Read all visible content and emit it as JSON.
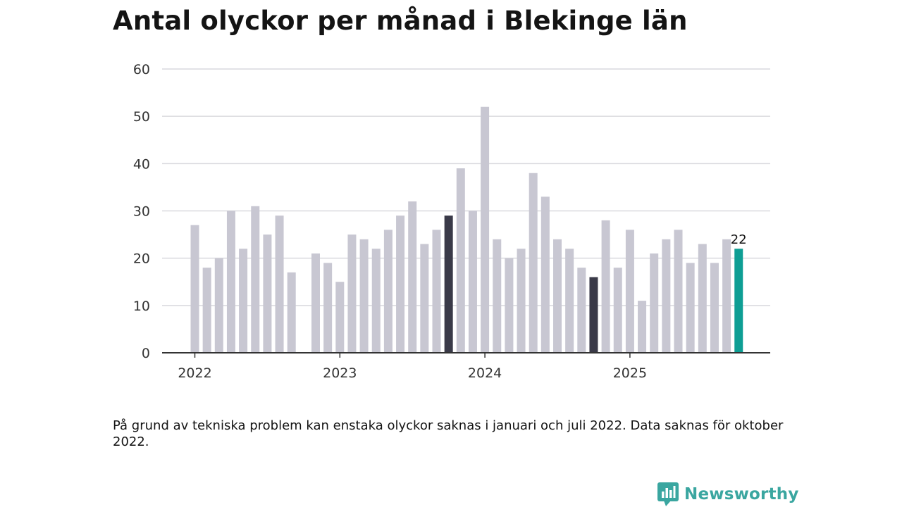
{
  "title": "Antal olyckor per månad i Blekinge län",
  "note": "På grund av tekniska problem kan enstaka olyckor saknas i januari och juli 2022. Data saknas för oktober 2022.",
  "brand": {
    "name": "Newsworthy",
    "color": "#3aa6a0",
    "logo_icon": "newsworthy-logo-icon"
  },
  "chart_data": {
    "type": "bar",
    "title": "Antal olyckor per månad i Blekinge län",
    "xlabel": "",
    "ylabel": "",
    "ylim": [
      0,
      60
    ],
    "yticks": [
      0,
      10,
      20,
      30,
      40,
      50,
      60
    ],
    "xticks": [
      "2022",
      "2023",
      "2024",
      "2025"
    ],
    "grid": true,
    "colors": {
      "default": "#c8c7d2",
      "highlight": "#3a3a48",
      "latest": "#0e9e94"
    },
    "categories": [
      "2022-01",
      "2022-02",
      "2022-03",
      "2022-04",
      "2022-05",
      "2022-06",
      "2022-07",
      "2022-08",
      "2022-09",
      "2022-10",
      "2022-11",
      "2022-12",
      "2023-01",
      "2023-02",
      "2023-03",
      "2023-04",
      "2023-05",
      "2023-06",
      "2023-07",
      "2023-08",
      "2023-09",
      "2023-10",
      "2023-11",
      "2023-12",
      "2024-01",
      "2024-02",
      "2024-03",
      "2024-04",
      "2024-05",
      "2024-06",
      "2024-07",
      "2024-08",
      "2024-09",
      "2024-10",
      "2024-11",
      "2024-12",
      "2025-01",
      "2025-02",
      "2025-03",
      "2025-04",
      "2025-05",
      "2025-06",
      "2025-07",
      "2025-08",
      "2025-09",
      "2025-10"
    ],
    "values": [
      27,
      18,
      20,
      30,
      22,
      31,
      25,
      29,
      17,
      null,
      21,
      19,
      15,
      25,
      24,
      22,
      26,
      29,
      32,
      23,
      26,
      29,
      39,
      30,
      52,
      24,
      20,
      22,
      38,
      33,
      24,
      22,
      18,
      16,
      28,
      18,
      26,
      11,
      21,
      24,
      26,
      19,
      23,
      19,
      24,
      22
    ],
    "highlight": [
      "2023-10",
      "2024-10"
    ],
    "latest": "2025-10",
    "data_labels": [
      {
        "category": "2025-10",
        "label": "22"
      }
    ]
  }
}
